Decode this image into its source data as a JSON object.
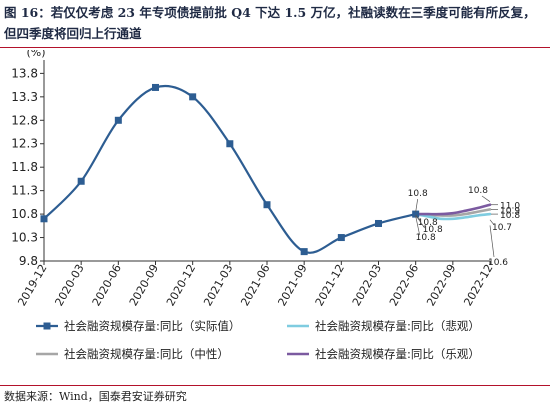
{
  "figure": {
    "title": "图 16：若仅仅考虑 23 年专项债提前批 Q4 下达 1.5 万亿，社融读数在三季度可能有所反复，但四季度将回归上行通道",
    "source": "数据来源：Wind，国泰君安证券研究"
  },
  "colors": {
    "actual": "#2d5d92",
    "pessimistic": "#7fcce0",
    "neutral": "#a6a6a6",
    "optimistic": "#7b5aa0",
    "rule": "#b3122b"
  },
  "chart_data": {
    "type": "line",
    "unit_label": "(%)",
    "x_ticks": [
      "2019-12",
      "2020-03",
      "2020-06",
      "2020-09",
      "2020-12",
      "2021-03",
      "2021-06",
      "2021-09",
      "2021-12",
      "2022-03",
      "2022-06",
      "2022-09",
      "2022-12"
    ],
    "ylim": [
      9.8,
      14.0
    ],
    "y_ticks": [
      9.8,
      10.3,
      10.8,
      11.3,
      11.8,
      12.3,
      12.8,
      13.3,
      13.8
    ],
    "grid": false,
    "legend_position": "bottom",
    "series": [
      {
        "name": "社会融资规模存量:同比（实际值）",
        "key": "actual",
        "marker": "square",
        "points": [
          {
            "x": "2019-12",
            "y": 10.7
          },
          {
            "x": "2020-03",
            "y": 11.5
          },
          {
            "x": "2020-06",
            "y": 12.8
          },
          {
            "x": "2020-09",
            "y": 13.5
          },
          {
            "x": "2020-12",
            "y": 13.3
          },
          {
            "x": "2021-03",
            "y": 12.3
          },
          {
            "x": "2021-06",
            "y": 11.0
          },
          {
            "x": "2021-09",
            "y": 10.0
          },
          {
            "x": "2021-12",
            "y": 10.3
          },
          {
            "x": "2022-03",
            "y": 10.6
          },
          {
            "x": "2022-06",
            "y": 10.8
          }
        ]
      },
      {
        "name": "社会融资规模存量:同比（悲观）",
        "key": "pessimistic",
        "marker": "none",
        "points": [
          {
            "x": "2022-06",
            "y": 10.8
          },
          {
            "x": "2022-07",
            "y": 10.75
          },
          {
            "x": "2022-08",
            "y": 10.7
          },
          {
            "x": "2022-09",
            "y": 10.7
          },
          {
            "x": "2022-10",
            "y": 10.73
          },
          {
            "x": "2022-11",
            "y": 10.77
          },
          {
            "x": "2022-12",
            "y": 10.8
          }
        ]
      },
      {
        "name": "社会融资规模存量:同比（中性）",
        "key": "neutral",
        "marker": "none",
        "points": [
          {
            "x": "2022-06",
            "y": 10.8
          },
          {
            "x": "2022-07",
            "y": 10.78
          },
          {
            "x": "2022-08",
            "y": 10.77
          },
          {
            "x": "2022-09",
            "y": 10.77
          },
          {
            "x": "2022-10",
            "y": 10.8
          },
          {
            "x": "2022-11",
            "y": 10.85
          },
          {
            "x": "2022-12",
            "y": 10.9
          }
        ]
      },
      {
        "name": "社会融资规模存量:同比（乐观）",
        "key": "optimistic",
        "marker": "none",
        "points": [
          {
            "x": "2022-06",
            "y": 10.8
          },
          {
            "x": "2022-07",
            "y": 10.8
          },
          {
            "x": "2022-08",
            "y": 10.8
          },
          {
            "x": "2022-09",
            "y": 10.82
          },
          {
            "x": "2022-10",
            "y": 10.87
          },
          {
            "x": "2022-11",
            "y": 10.93
          },
          {
            "x": "2022-12",
            "y": 11.0
          }
        ]
      }
    ],
    "annotations": [
      {
        "text": "10.8",
        "x": "2022-06",
        "y": 10.8,
        "placement": "above"
      },
      {
        "text": "10.8",
        "x": "2022-06",
        "y": 10.8,
        "placement": "below"
      },
      {
        "text": "10.8",
        "x": "2022-06",
        "y": 10.8,
        "placement": "below-2"
      },
      {
        "text": "10.8",
        "x": "2022-06",
        "y": 10.8,
        "placement": "below-3"
      },
      {
        "text": "10.8",
        "x": "2022-12",
        "y": 10.8,
        "placement": "above-top"
      },
      {
        "text": "11.0",
        "x": "2022-12",
        "y": 11.0,
        "placement": "right"
      },
      {
        "text": "10.9",
        "x": "2022-12",
        "y": 10.9,
        "placement": "right"
      },
      {
        "text": "10.8",
        "x": "2022-12",
        "y": 10.8,
        "placement": "right"
      },
      {
        "text": "10.7",
        "x": "2022-12",
        "y": 10.7,
        "placement": "below"
      },
      {
        "text": "10.6",
        "x": "2022-12",
        "y": 10.6,
        "placement": "below-far"
      }
    ]
  }
}
